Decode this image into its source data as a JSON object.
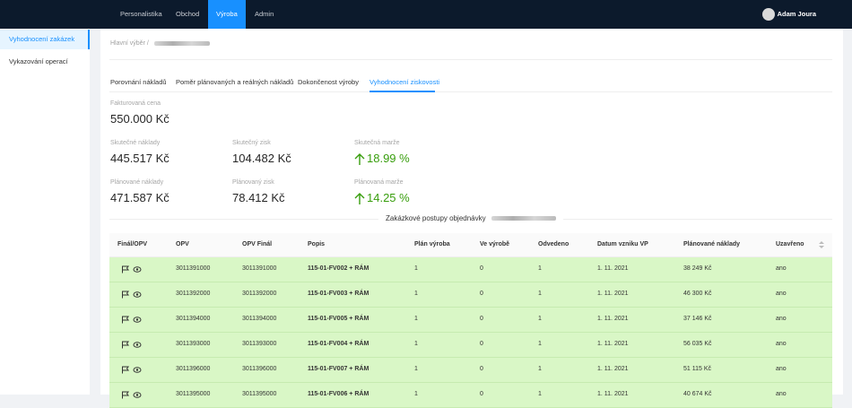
{
  "nav": [
    "Personalistika",
    "Obchod",
    "Výroba",
    "Admin"
  ],
  "user": "Adam Joura",
  "sidebar": [
    "Vyhodnocení zakázek",
    "Vykazování operací"
  ],
  "breadcrumb": "Hlavní výběr /",
  "tabs": [
    "Porovnání nákladů",
    "Poměr plánovaných a reálných nákladů",
    "Dokončenost výroby",
    "Vyhodnocení ziskovosti"
  ],
  "stats": [
    {
      "label": "Fakturovaná cena",
      "value": "550.000 Kč"
    },
    {
      "label": "Skutečné náklady",
      "value": "445.517 Kč"
    },
    {
      "label": "Skutečný zisk",
      "value": "104.482 Kč"
    },
    {
      "label": "Skutečná marže",
      "value": "18.99 %"
    },
    {
      "label": "Plánované náklady",
      "value": "471.587 Kč"
    },
    {
      "label": "Plánovaný zisk",
      "value": "78.412 Kč"
    },
    {
      "label": "Plánovaná marže",
      "value": "14.25 %"
    }
  ],
  "section_title": "Zakázkové postupy objednávky",
  "table": {
    "columns": [
      "Finál/OPV",
      "OPV",
      "OPV Finál",
      "Popis",
      "Plán výroba",
      "Ve výrobě",
      "Odvedeno",
      "Datum vzniku VP",
      "Plánované náklady",
      "Uzavřeno"
    ],
    "rows": [
      [
        "3011391000",
        "3011391000",
        "115-01-FV002 + RÁM",
        "1",
        "0",
        "1",
        "1. 11. 2021",
        "38 249 Kč",
        "ano"
      ],
      [
        "3011392000",
        "3011392000",
        "115-01-FV003 + RÁM",
        "1",
        "0",
        "1",
        "1. 11. 2021",
        "46 300 Kč",
        "ano"
      ],
      [
        "3011394000",
        "3011394000",
        "115-01-FV005 + RÁM",
        "1",
        "0",
        "1",
        "1. 11. 2021",
        "37 146 Kč",
        "ano"
      ],
      [
        "3011393000",
        "3011393000",
        "115-01-FV004 + RÁM",
        "1",
        "0",
        "1",
        "1. 11. 2021",
        "56 035 Kč",
        "ano"
      ],
      [
        "3011396000",
        "3011396000",
        "115-01-FV007 + RÁM",
        "1",
        "0",
        "1",
        "1. 11. 2021",
        "51 115 Kč",
        "ano"
      ],
      [
        "3011395000",
        "3011395000",
        "115-01-FV006 + RÁM",
        "1",
        "0",
        "1",
        "1. 11. 2021",
        "40 674 Kč",
        "ano"
      ]
    ]
  }
}
